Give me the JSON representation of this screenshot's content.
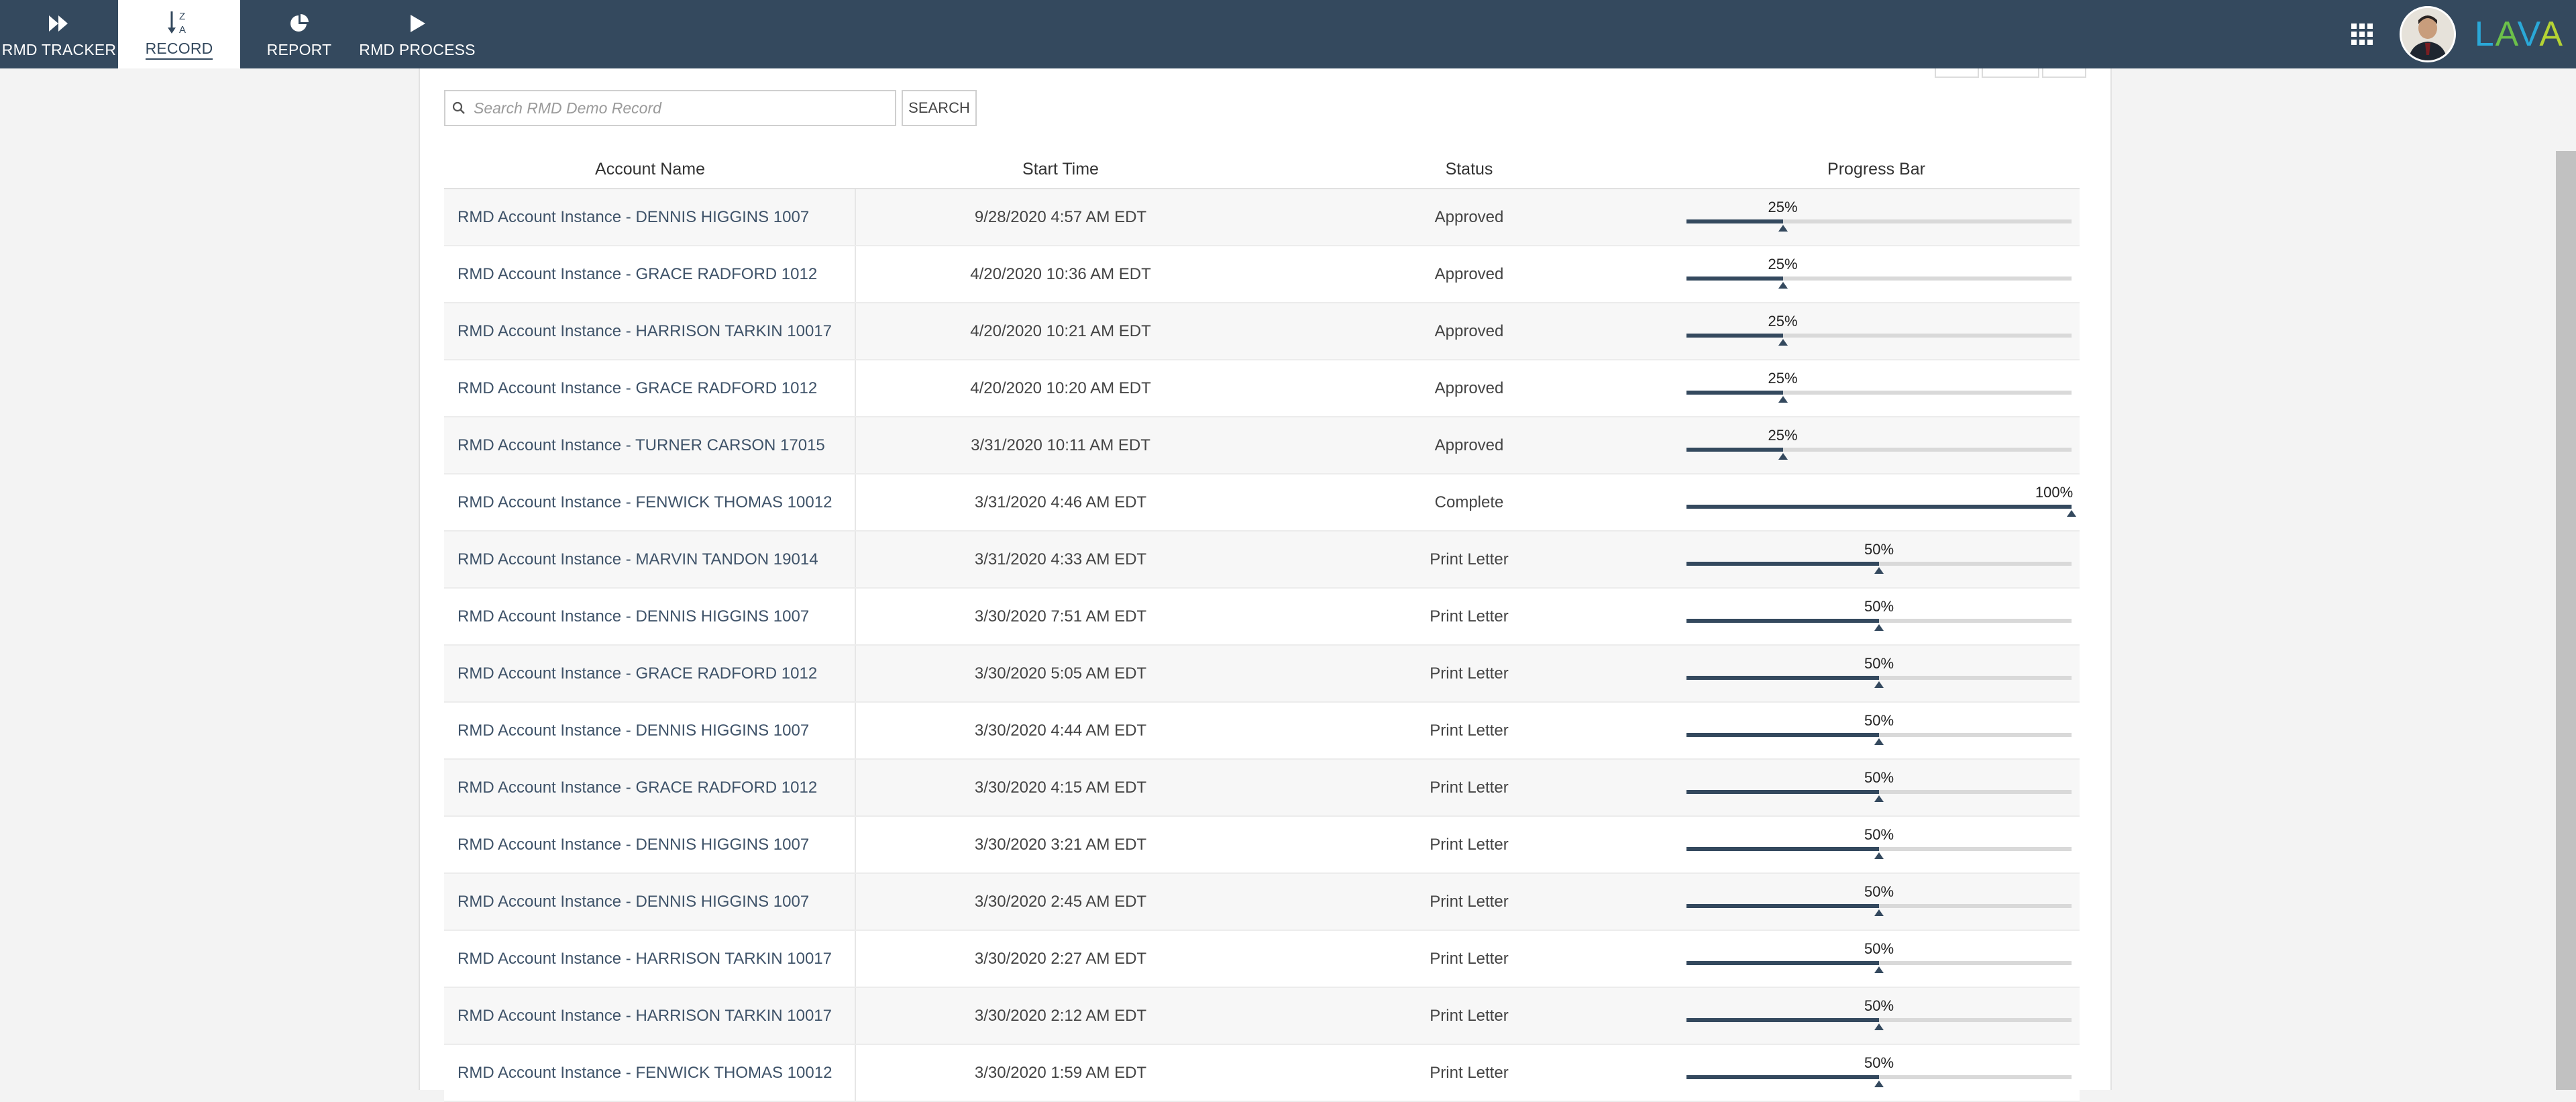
{
  "nav": {
    "items": [
      {
        "label": "RMD TRACKER",
        "icon": "fast-forward-icon",
        "active": false
      },
      {
        "label": "RECORD",
        "icon": "sort-alpha-icon",
        "active": true
      },
      {
        "label": "REPORT",
        "icon": "pie-chart-icon",
        "active": false
      },
      {
        "label": "RMD PROCESS",
        "icon": "play-icon",
        "active": false
      }
    ],
    "apps_icon": "grid-icon",
    "logo_text": "LAVA"
  },
  "search": {
    "placeholder": "Search RMD Demo Record",
    "value": "",
    "button_label": "SEARCH"
  },
  "table": {
    "headers": {
      "name": "Account Name",
      "time": "Start Time",
      "status": "Status",
      "progress": "Progress Bar"
    },
    "rows": [
      {
        "name": "RMD Account Instance - DENNIS HIGGINS 1007",
        "time": "9/28/2020 4:57 AM EDT",
        "status": "Approved",
        "progress": 25,
        "progress_label": "25%"
      },
      {
        "name": "RMD Account Instance - GRACE RADFORD 1012",
        "time": "4/20/2020 10:36 AM EDT",
        "status": "Approved",
        "progress": 25,
        "progress_label": "25%"
      },
      {
        "name": "RMD Account Instance - HARRISON TARKIN 10017",
        "time": "4/20/2020 10:21 AM EDT",
        "status": "Approved",
        "progress": 25,
        "progress_label": "25%"
      },
      {
        "name": "RMD Account Instance - GRACE RADFORD 1012",
        "time": "4/20/2020 10:20 AM EDT",
        "status": "Approved",
        "progress": 25,
        "progress_label": "25%"
      },
      {
        "name": "RMD Account Instance - TURNER CARSON 17015",
        "time": "3/31/2020 10:11 AM EDT",
        "status": "Approved",
        "progress": 25,
        "progress_label": "25%"
      },
      {
        "name": "RMD Account Instance - FENWICK THOMAS 10012",
        "time": "3/31/2020 4:46 AM EDT",
        "status": "Complete",
        "progress": 100,
        "progress_label": "100%"
      },
      {
        "name": "RMD Account Instance - MARVIN TANDON 19014",
        "time": "3/31/2020 4:33 AM EDT",
        "status": "Print Letter",
        "progress": 50,
        "progress_label": "50%"
      },
      {
        "name": "RMD Account Instance - DENNIS HIGGINS 1007",
        "time": "3/30/2020 7:51 AM EDT",
        "status": "Print Letter",
        "progress": 50,
        "progress_label": "50%"
      },
      {
        "name": "RMD Account Instance - GRACE RADFORD 1012",
        "time": "3/30/2020 5:05 AM EDT",
        "status": "Print Letter",
        "progress": 50,
        "progress_label": "50%"
      },
      {
        "name": "RMD Account Instance - DENNIS HIGGINS 1007",
        "time": "3/30/2020 4:44 AM EDT",
        "status": "Print Letter",
        "progress": 50,
        "progress_label": "50%"
      },
      {
        "name": "RMD Account Instance - GRACE RADFORD 1012",
        "time": "3/30/2020 4:15 AM EDT",
        "status": "Print Letter",
        "progress": 50,
        "progress_label": "50%"
      },
      {
        "name": "RMD Account Instance - DENNIS HIGGINS 1007",
        "time": "3/30/2020 3:21 AM EDT",
        "status": "Print Letter",
        "progress": 50,
        "progress_label": "50%"
      },
      {
        "name": "RMD Account Instance - DENNIS HIGGINS 1007",
        "time": "3/30/2020 2:45 AM EDT",
        "status": "Print Letter",
        "progress": 50,
        "progress_label": "50%"
      },
      {
        "name": "RMD Account Instance - HARRISON TARKIN 10017",
        "time": "3/30/2020 2:27 AM EDT",
        "status": "Print Letter",
        "progress": 50,
        "progress_label": "50%"
      },
      {
        "name": "RMD Account Instance - HARRISON TARKIN 10017",
        "time": "3/30/2020 2:12 AM EDT",
        "status": "Print Letter",
        "progress": 50,
        "progress_label": "50%"
      },
      {
        "name": "RMD Account Instance - FENWICK THOMAS 10012",
        "time": "3/30/2020 1:59 AM EDT",
        "status": "Print Letter",
        "progress": 50,
        "progress_label": "50%"
      }
    ]
  },
  "colors": {
    "nav_bg": "#34495e",
    "progress_fill": "#34495e",
    "progress_track": "#d9d9d9",
    "link_text": "#3f5369"
  }
}
